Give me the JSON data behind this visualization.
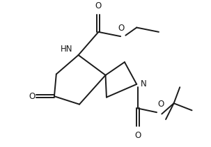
{
  "background": "#ffffff",
  "line_color": "#1a1a1a",
  "line_width": 1.4,
  "font_size": 8.5,
  "figsize": [
    3.03,
    2.11
  ],
  "dpi": 100,
  "xlim": [
    0,
    10
  ],
  "ylim": [
    0,
    7
  ]
}
